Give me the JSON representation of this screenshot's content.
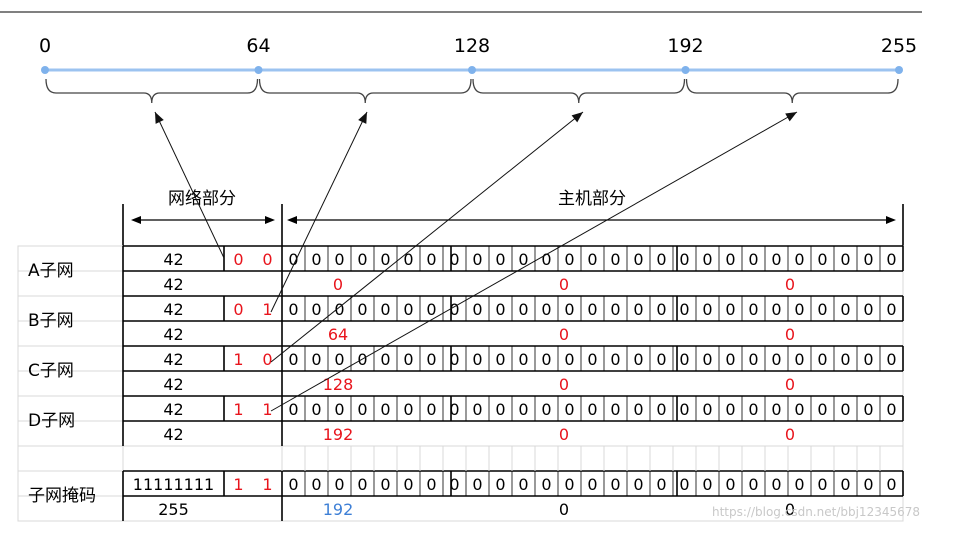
{
  "scale": {
    "ticks": [
      "0",
      "64",
      "128",
      "192",
      "255"
    ],
    "segments": 4
  },
  "headers": {
    "network": "网络部分",
    "host": "主机部分"
  },
  "subnets": [
    {
      "label": "A子网",
      "top_prefix": "42",
      "bits": [
        "0",
        "0"
      ],
      "host_bits": "000000000000000000000000",
      "bottom_prefix": "42",
      "octet": "0",
      "mid": "0",
      "last": "0"
    },
    {
      "label": "B子网",
      "top_prefix": "42",
      "bits": [
        "0",
        "1"
      ],
      "host_bits": "000000000000000000000000",
      "bottom_prefix": "42",
      "octet": "64",
      "mid": "0",
      "last": "0"
    },
    {
      "label": "C子网",
      "top_prefix": "42",
      "bits": [
        "1",
        "0"
      ],
      "host_bits": "000000000000000000000000",
      "bottom_prefix": "42",
      "octet": "128",
      "mid": "0",
      "last": "0"
    },
    {
      "label": "D子网",
      "top_prefix": "42",
      "bits": [
        "1",
        "1"
      ],
      "host_bits": "000000000000000000000000",
      "bottom_prefix": "42",
      "octet": "192",
      "mid": "0",
      "last": "0"
    }
  ],
  "mask": {
    "label": "子网掩码",
    "top_prefix": "11111111",
    "bits": [
      "1",
      "1"
    ],
    "host_bits": "000000000000000000000000",
    "bottom_prefix": "255",
    "octet": "192",
    "mid": "0",
    "last": "0"
  },
  "watermark": "https://blog.csdn.net/bbj12345678",
  "colors": {
    "red": "#e8141c",
    "blue": "#3d7fd6",
    "scale_line": "#9cc3f0",
    "scale_dot": "#7fb2ec",
    "grid": "#000000",
    "light_grid": "#d8d8d8"
  }
}
